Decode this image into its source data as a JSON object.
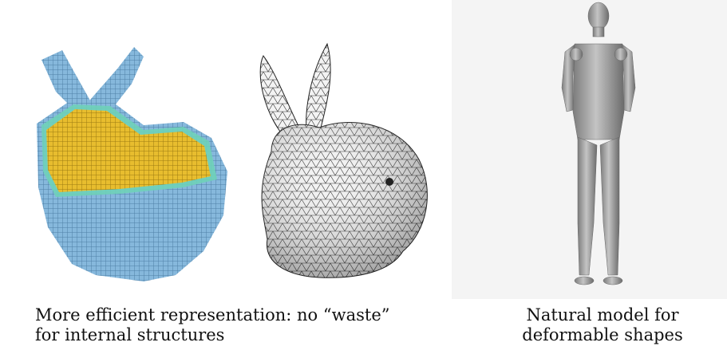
{
  "captions": {
    "left": {
      "line1": "More efficient representation: no “waste”",
      "line2": "for internal structures"
    },
    "right": {
      "line1": "Natural model for",
      "line2": "deformable shapes"
    }
  },
  "figures": [
    {
      "name": "voxel-bunny",
      "colors": {
        "outer": "#7fb2d6",
        "inner": "#e5b82a",
        "rim": "#6fd1b8"
      }
    },
    {
      "name": "mesh-bunny",
      "colors": {
        "fill": "#f2f2f2",
        "edges": "#222222"
      }
    },
    {
      "name": "human-mesh",
      "colors": {
        "fill": "#9a9a9a",
        "background": "#f4f4f4"
      }
    }
  ]
}
